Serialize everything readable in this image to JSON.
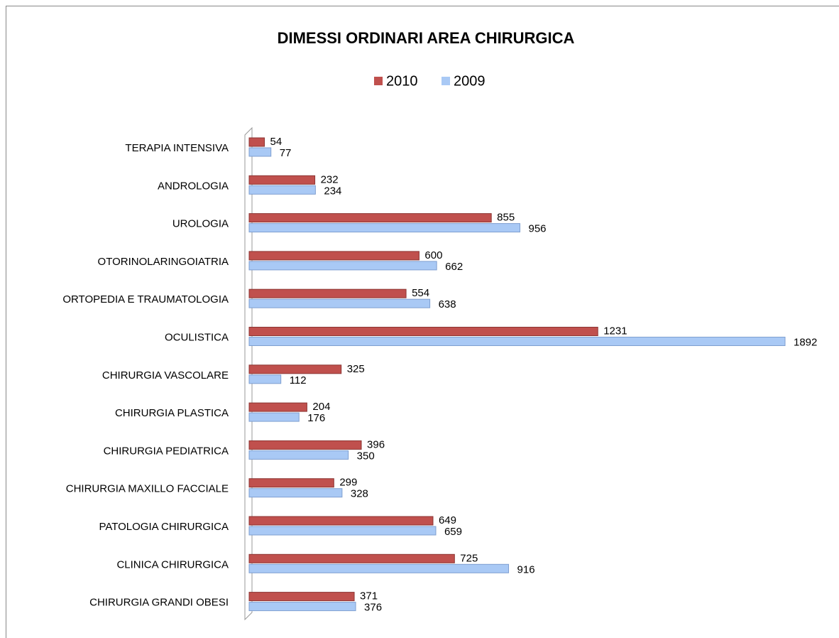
{
  "chart_data": {
    "type": "bar",
    "orientation": "horizontal",
    "title": "DIMESSI ORDINARI AREA CHIRURGICA",
    "categories": [
      "TERAPIA INTENSIVA",
      "ANDROLOGIA",
      "UROLOGIA",
      "OTORINOLARINGOIATRIA",
      "ORTOPEDIA E TRAUMATOLOGIA",
      "OCULISTICA",
      "CHIRURGIA VASCOLARE",
      "CHIRURGIA PLASTICA",
      "CHIRURGIA PEDIATRICA",
      "CHIRURGIA MAXILLO FACCIALE",
      "PATOLOGIA CHIRURGICA",
      "CLINICA CHIRURGICA",
      "CHIRURGIA GRANDI OBESI"
    ],
    "series": [
      {
        "name": "2010",
        "color": "#c0504d",
        "values": [
          54,
          232,
          855,
          600,
          554,
          1231,
          325,
          204,
          396,
          299,
          649,
          725,
          371
        ]
      },
      {
        "name": "2009",
        "color": "#a9c9f5",
        "values": [
          77,
          234,
          956,
          662,
          638,
          1892,
          112,
          176,
          350,
          328,
          659,
          916,
          376
        ]
      }
    ],
    "legend": "top"
  }
}
